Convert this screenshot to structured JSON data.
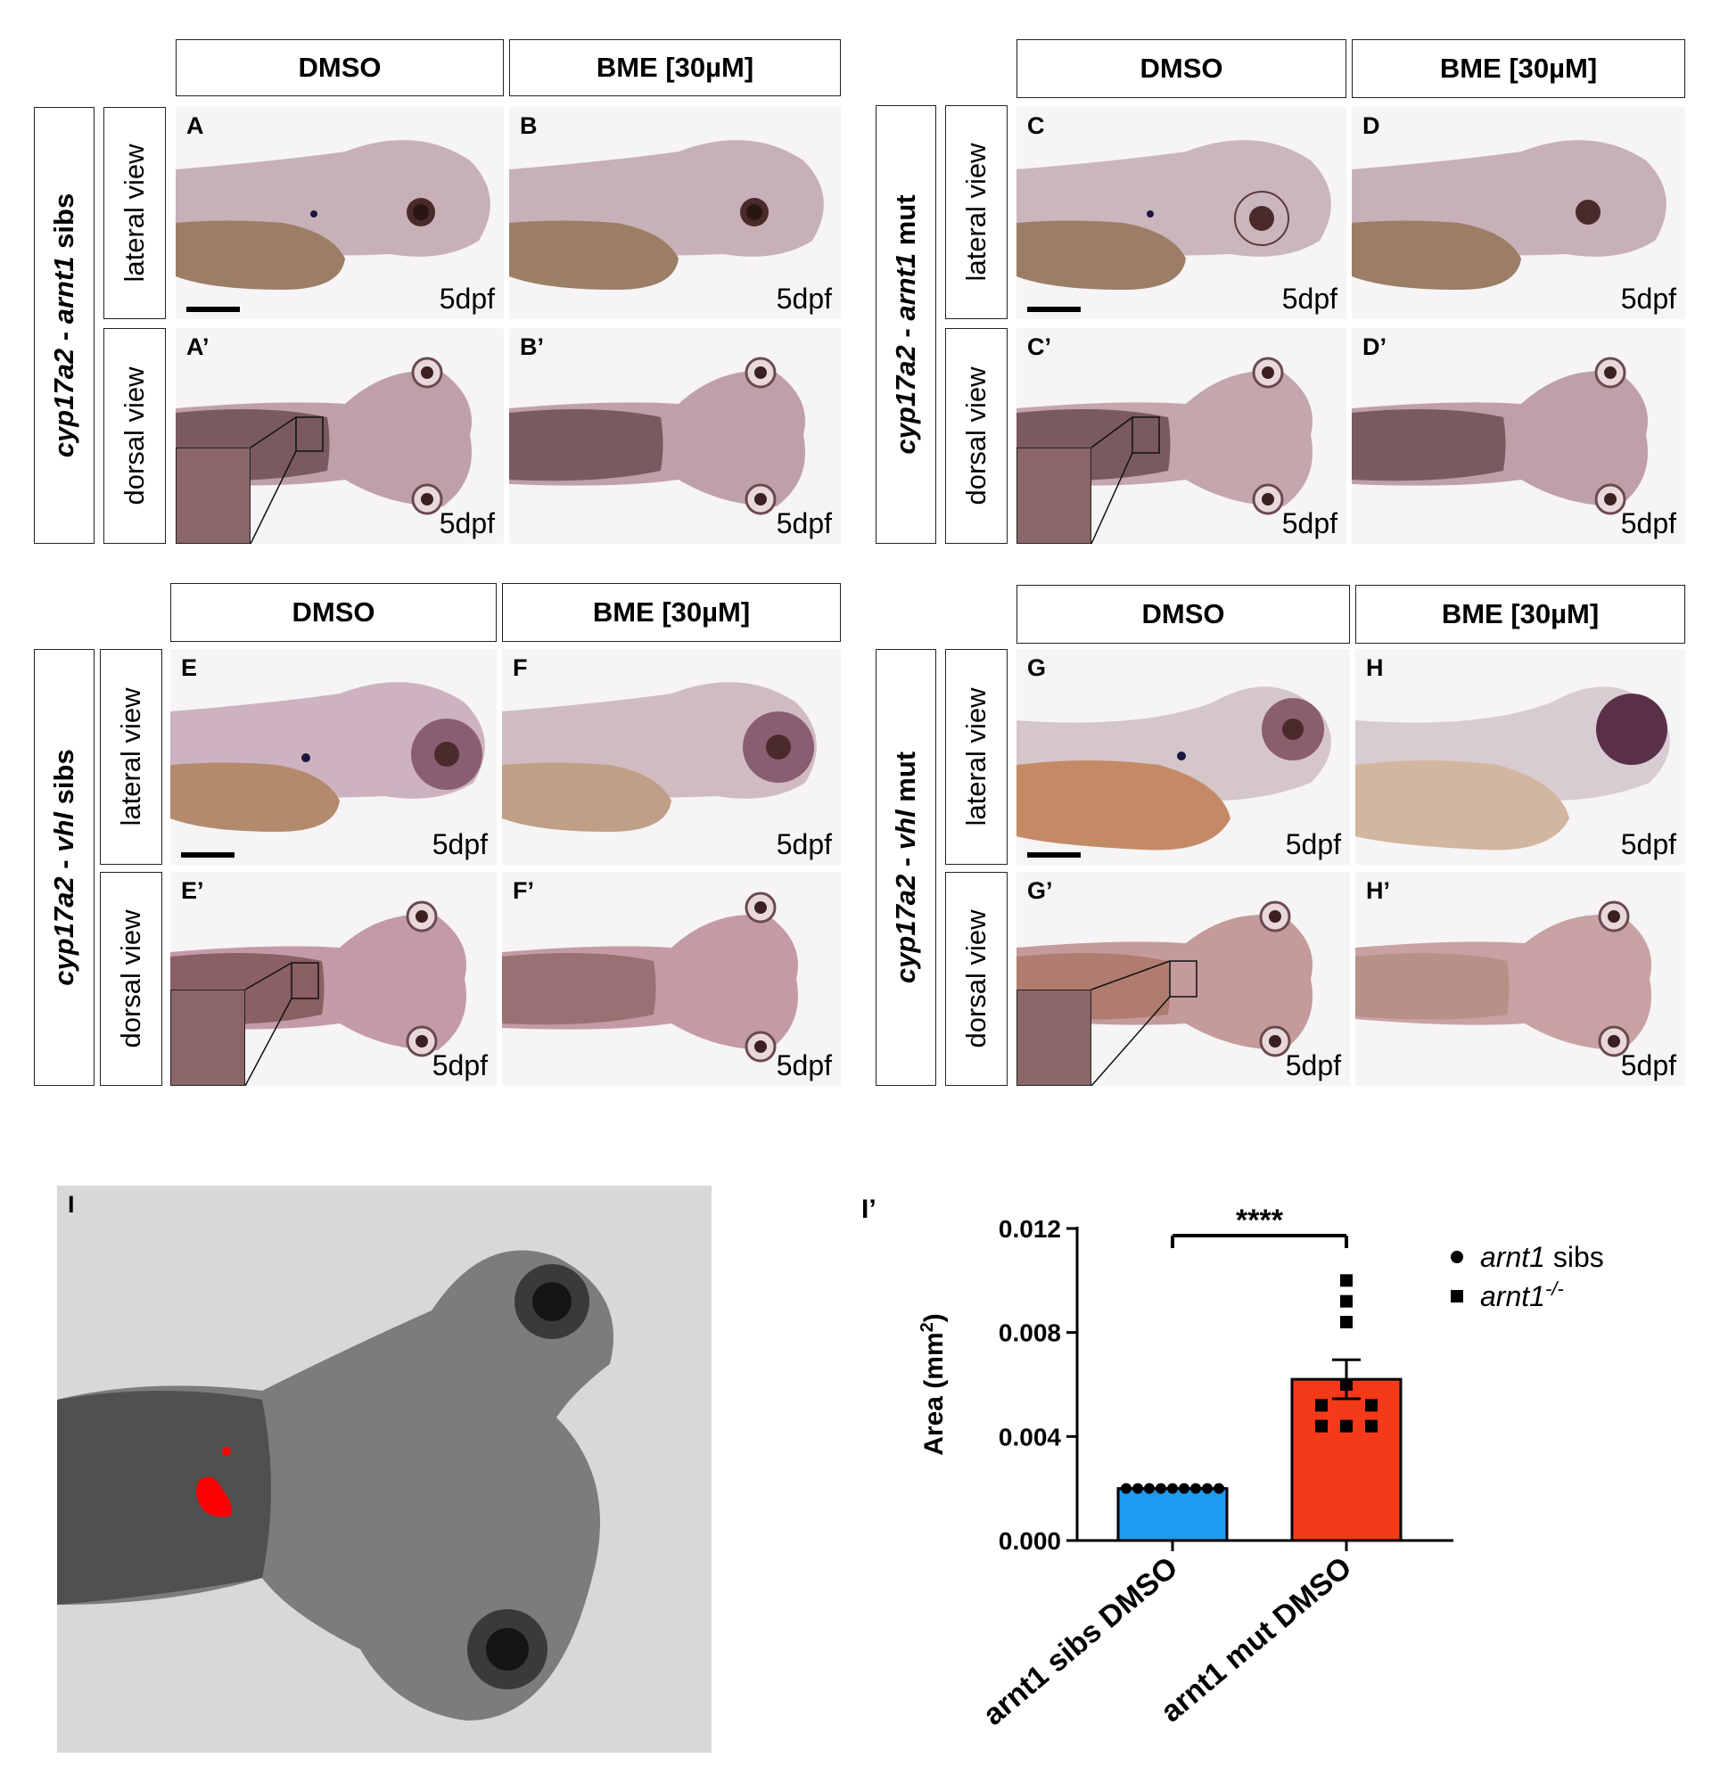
{
  "headers": {
    "dmso": "DMSO",
    "bme": "BME [30µM]"
  },
  "views": {
    "lateral": "lateral view",
    "dorsal": "dorsal view"
  },
  "age": "5dpf",
  "groups": [
    {
      "gene": "cyp17a2",
      "sep": " - ",
      "genotype_gene": "arnt1",
      "genotype_suffix": " sibs"
    },
    {
      "gene": "cyp17a2",
      "sep": " - ",
      "genotype_gene": "arnt1",
      "genotype_suffix": " mut"
    },
    {
      "gene": "cyp17a2",
      "sep": " - ",
      "genotype_gene": "vhl",
      "genotype_suffix": " sibs"
    },
    {
      "gene": "cyp17a2",
      "sep": " - ",
      "genotype_gene": "vhl",
      "genotype_suffix": " mut"
    }
  ],
  "panel_labels": {
    "A": "A",
    "A2": "A’",
    "B": "B",
    "B2": "B’",
    "C": "C",
    "C2": "C’",
    "D": "D",
    "D2": "D’",
    "E": "E",
    "E2": "E’",
    "F": "F",
    "F2": "F’",
    "G": "G",
    "G2": "G’",
    "H": "H",
    "H2": "H’",
    "I": "I",
    "I2": "I’"
  },
  "colors": {
    "sibs_bar": "#1e9bf0",
    "mut_bar": "#f53a1a",
    "highlight": "#ff0000"
  },
  "chart_data": {
    "type": "bar",
    "ylabel": "Area (mm²)",
    "ylabel_main": "Area (mm",
    "ylabel_sup": "2",
    "ylabel_end": ")",
    "ylim": [
      0,
      0.012
    ],
    "yticks": [
      "0.000",
      "0.004",
      "0.008",
      "0.012"
    ],
    "yticks_values": [
      0,
      0.004,
      0.008,
      0.012
    ],
    "categories": [
      "arnt1 sibs DMSO",
      "arnt1 mut DMSO"
    ],
    "values": [
      0.002,
      0.0062
    ],
    "sem": [
      0.0,
      0.00075
    ],
    "significance": "****",
    "legend": [
      {
        "marker": "circle",
        "gene": "arnt1",
        "suffix": " sibs"
      },
      {
        "marker": "square",
        "gene": "arnt1",
        "suffix": "-/-"
      }
    ],
    "points_sibs": [
      0.002,
      0.002,
      0.002,
      0.002,
      0.002,
      0.002,
      0.002,
      0.002,
      0.002
    ],
    "points_mut": [
      0.01,
      0.0092,
      0.0084,
      0.006,
      0.0052,
      0.0044,
      0.0044,
      0.0044,
      0.0052
    ]
  }
}
